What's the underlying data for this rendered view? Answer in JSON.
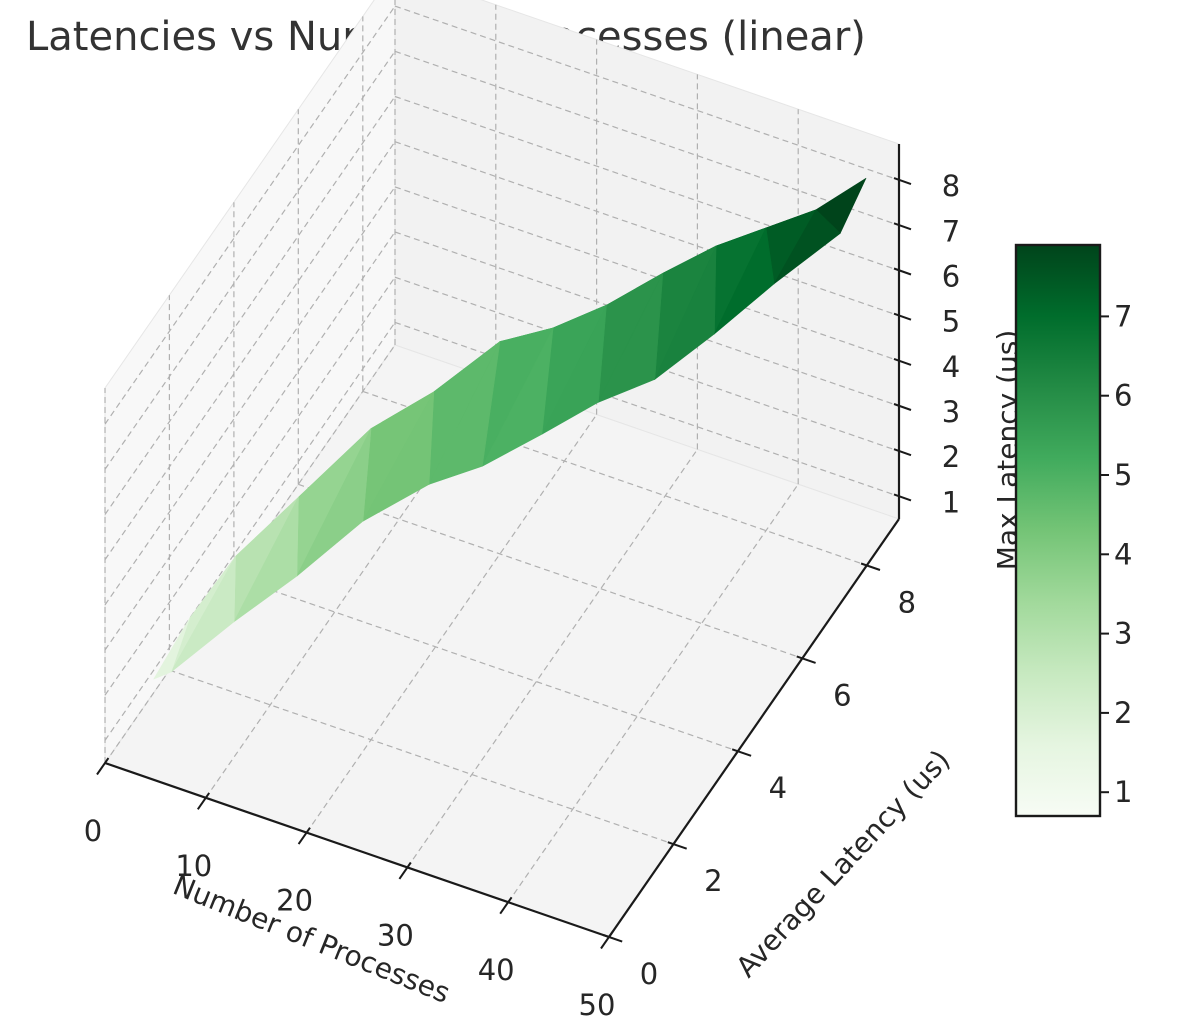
{
  "chart_data": {
    "type": "surface3d",
    "title": "Latencies vs Number of Processes (linear)",
    "xlabel": "Number of Processes",
    "ylabel": "Average Latency (us)",
    "zlabel": "Max Latency (us)",
    "xticks": [
      "0",
      "10",
      "20",
      "30",
      "40",
      "50"
    ],
    "yticks": [
      "0",
      "2",
      "4",
      "6",
      "8"
    ],
    "zticks": [
      "1",
      "2",
      "3",
      "4",
      "5",
      "6",
      "7",
      "8"
    ],
    "colorbar_ticks": [
      "1",
      "2",
      "3",
      "4",
      "5",
      "6",
      "7"
    ],
    "colormap": "Greens",
    "colormap_colors": [
      "#f7fcf5",
      "#e5f5e0",
      "#c7e9c0",
      "#a1d99b",
      "#74c476",
      "#41ab5d",
      "#238b45",
      "#006d2c",
      "#00441b"
    ],
    "color_range": [
      0.7,
      7.9
    ],
    "xlim": [
      0,
      50
    ],
    "ylim": [
      0,
      9
    ],
    "zlim": [
      0.5,
      8.8
    ],
    "points": [
      {
        "x": 1,
        "y": 1.2,
        "z": 1.2
      },
      {
        "x": 2,
        "y": 2.0,
        "z": 1.8
      },
      {
        "x": 4,
        "y": 0.8,
        "z": 2.0
      },
      {
        "x": 4,
        "y": 2.8,
        "z": 2.5
      },
      {
        "x": 8,
        "y": 1.5,
        "z": 2.7
      },
      {
        "x": 8,
        "y": 3.5,
        "z": 3.4
      },
      {
        "x": 12,
        "y": 2.2,
        "z": 3.3
      },
      {
        "x": 12,
        "y": 4.5,
        "z": 4.2
      },
      {
        "x": 16,
        "y": 3.0,
        "z": 4.0
      },
      {
        "x": 16,
        "y": 5.2,
        "z": 4.6
      },
      {
        "x": 20,
        "y": 3.8,
        "z": 4.3
      },
      {
        "x": 20,
        "y": 6.0,
        "z": 5.2
      },
      {
        "x": 24,
        "y": 4.2,
        "z": 4.6
      },
      {
        "x": 24,
        "y": 6.4,
        "z": 5.4
      },
      {
        "x": 28,
        "y": 4.8,
        "z": 5.0
      },
      {
        "x": 28,
        "y": 6.8,
        "z": 5.8
      },
      {
        "x": 32,
        "y": 5.3,
        "z": 5.5
      },
      {
        "x": 32,
        "y": 7.3,
        "z": 6.3
      },
      {
        "x": 36,
        "y": 5.8,
        "z": 5.8
      },
      {
        "x": 36,
        "y": 7.7,
        "z": 6.8
      },
      {
        "x": 40,
        "y": 6.4,
        "z": 6.5
      },
      {
        "x": 40,
        "y": 8.0,
        "z": 7.2
      },
      {
        "x": 44,
        "y": 7.0,
        "z": 7.3
      },
      {
        "x": 44,
        "y": 8.3,
        "z": 7.6
      },
      {
        "x": 48,
        "y": 7.8,
        "z": 7.9
      },
      {
        "x": 48,
        "y": 8.6,
        "z": 8.3
      }
    ]
  }
}
